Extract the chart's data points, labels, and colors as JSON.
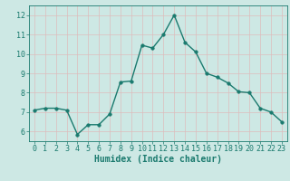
{
  "x": [
    0,
    1,
    2,
    3,
    4,
    5,
    6,
    7,
    8,
    9,
    10,
    11,
    12,
    13,
    14,
    15,
    16,
    17,
    18,
    19,
    20,
    21,
    22,
    23
  ],
  "y": [
    7.1,
    7.2,
    7.2,
    7.1,
    5.85,
    6.35,
    6.35,
    6.9,
    8.55,
    8.6,
    10.45,
    10.3,
    11.0,
    12.0,
    10.6,
    10.1,
    9.0,
    8.8,
    8.5,
    8.05,
    8.0,
    7.2,
    7.0,
    6.5
  ],
  "line_color": "#1a7a6e",
  "marker": "o",
  "marker_size": 2.5,
  "xlabel": "Humidex (Indice chaleur)",
  "xlabel_fontsize": 7,
  "ylim": [
    5.5,
    12.5
  ],
  "xlim": [
    -0.5,
    23.5
  ],
  "yticks": [
    6,
    7,
    8,
    9,
    10,
    11,
    12
  ],
  "xticks": [
    0,
    1,
    2,
    3,
    4,
    5,
    6,
    7,
    8,
    9,
    10,
    11,
    12,
    13,
    14,
    15,
    16,
    17,
    18,
    19,
    20,
    21,
    22,
    23
  ],
  "bg_color": "#cde8e4",
  "grid_color": "#ddbcbc",
  "tick_label_fontsize": 6,
  "line_width": 1.0
}
